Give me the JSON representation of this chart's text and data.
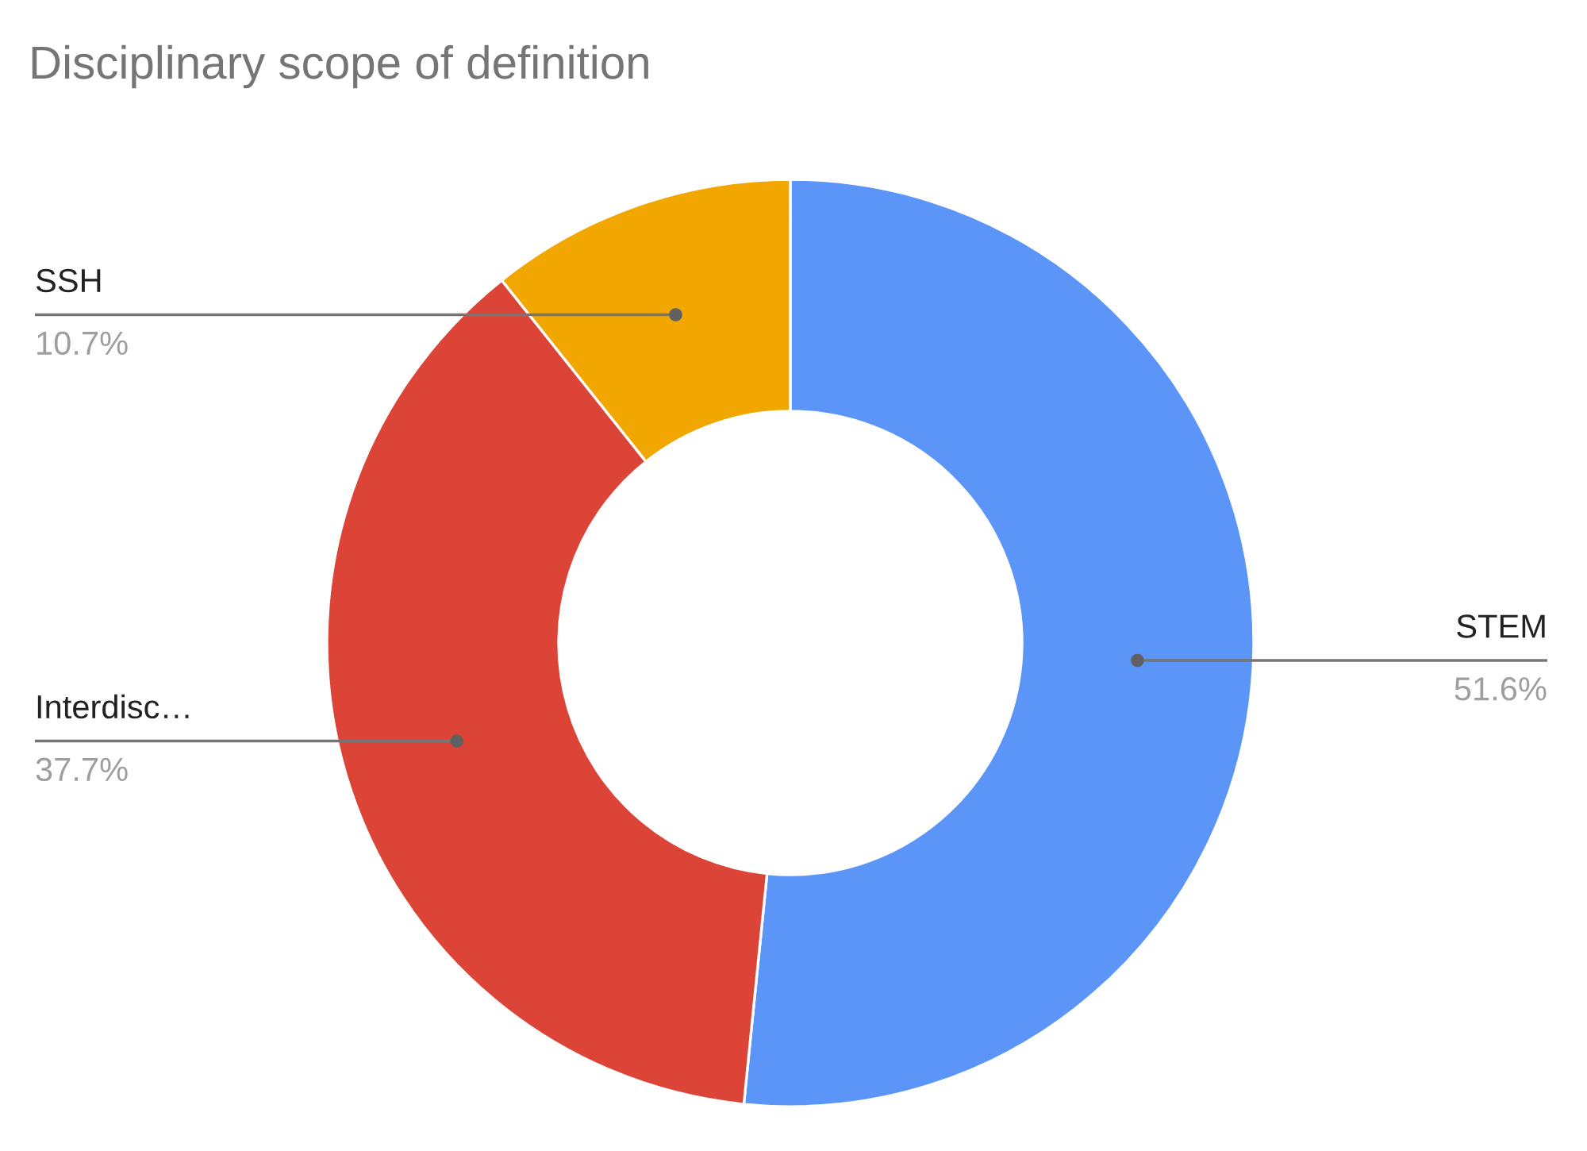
{
  "chart_data": {
    "type": "donut",
    "title": "Disciplinary scope of definition",
    "categories": [
      "STEM",
      "Interdisc…",
      "SSH"
    ],
    "values": [
      51.6,
      37.7,
      10.7
    ],
    "value_labels": [
      "51.6%",
      "37.7%",
      "10.7%"
    ],
    "colors": [
      "#5b95f7",
      "#db4437",
      "#f2a600"
    ]
  }
}
